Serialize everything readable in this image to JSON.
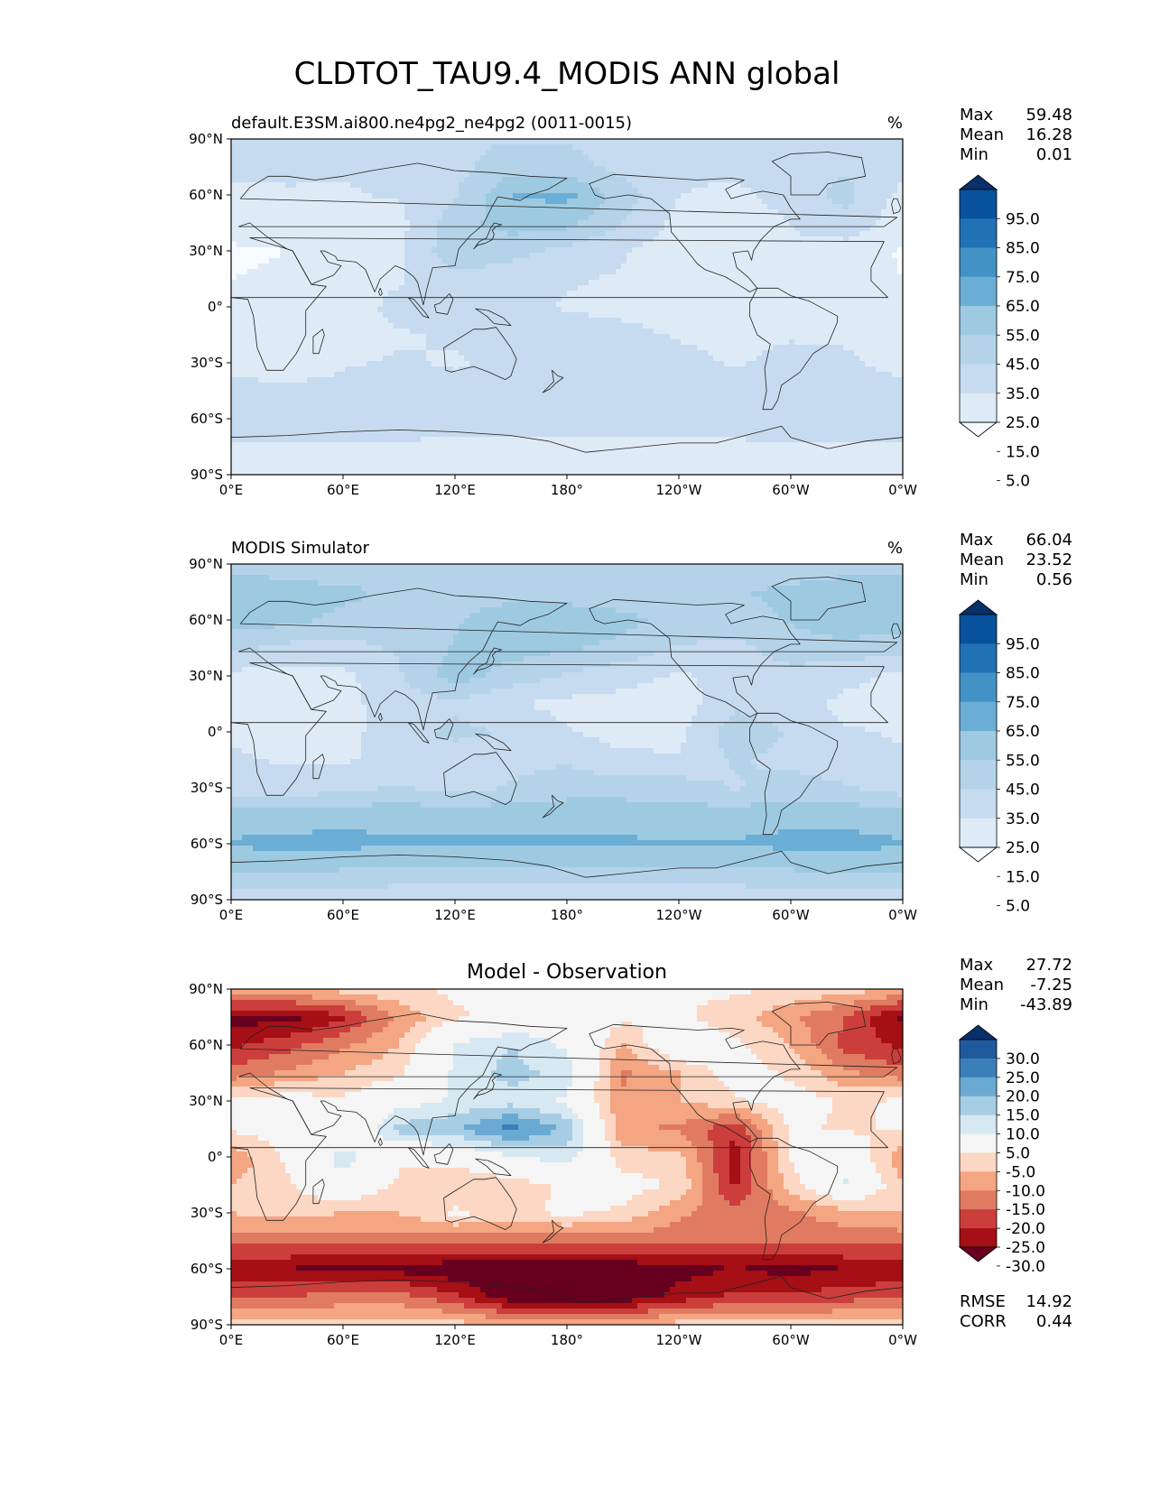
{
  "page_title": "CLDTOT_TAU9.4_MODIS ANN global",
  "lon_ticks": [
    "0°E",
    "60°E",
    "120°E",
    "180°",
    "120°W",
    "60°W",
    "0°W"
  ],
  "lat_ticks": [
    "90°N",
    "60°N",
    "30°N",
    "0°",
    "30°S",
    "60°S",
    "90°S"
  ],
  "stat_labels": {
    "max": "Max",
    "mean": "Mean",
    "min": "Min",
    "rmse": "RMSE",
    "corr": "CORR"
  },
  "colors": {
    "blues": [
      "#f7fbff",
      "#deebf7",
      "#c6dbef",
      "#b4d3e9",
      "#9ecae1",
      "#6baed6",
      "#4292c6",
      "#2171b5",
      "#08519c",
      "#08306b"
    ],
    "diverging": [
      "#67001f",
      "#a50f15",
      "#cb3e3b",
      "#e07b62",
      "#f4a582",
      "#fbd7c4",
      "#f5f5f5",
      "#d6e8f2",
      "#a7cde4",
      "#6aaad2",
      "#3b7fb9",
      "#1e5a9c",
      "#08306b"
    ],
    "coast": "#222222"
  },
  "panels": [
    {
      "left_title": "default.E3SM.ai800.ne4pg2_ne4pg2 (0011-0015)",
      "center_title": "",
      "units": "%",
      "stats": {
        "max": "59.48",
        "mean": "16.28",
        "min": "0.01"
      },
      "colorbar_ticks": [
        "95.0",
        "85.0",
        "75.0",
        "65.0",
        "55.0",
        "45.0",
        "35.0",
        "25.0",
        "15.0",
        "5.0"
      ]
    },
    {
      "left_title": "MODIS Simulator",
      "center_title": "",
      "units": "%",
      "stats": {
        "max": "66.04",
        "mean": "23.52",
        "min": "0.56"
      },
      "colorbar_ticks": [
        "95.0",
        "85.0",
        "75.0",
        "65.0",
        "55.0",
        "45.0",
        "35.0",
        "25.0",
        "15.0",
        "5.0"
      ]
    },
    {
      "left_title": "",
      "center_title": "Model - Observation",
      "units": "",
      "stats": {
        "max": "27.72",
        "mean": "-7.25",
        "min": "-43.89",
        "rmse": "14.92",
        "corr": "0.44"
      },
      "colorbar_ticks": [
        "30.0",
        "25.0",
        "20.0",
        "15.0",
        "10.0",
        "5.0",
        "-5.0",
        "-10.0",
        "-15.0",
        "-20.0",
        "-25.0",
        "-30.0"
      ]
    }
  ],
  "chart_data": [
    {
      "type": "heatmap",
      "title": "default.E3SM.ai800.ne4pg2_ne4pg2 (0011-0015)",
      "units": "%",
      "xlim": [
        0,
        360
      ],
      "ylim": [
        -90,
        90
      ],
      "levels": [
        0,
        5,
        15,
        25,
        35,
        45,
        55,
        65,
        75,
        85,
        95,
        100
      ],
      "stats": {
        "max": 59.48,
        "mean": 16.28,
        "min": 0.01
      },
      "lons": [
        0,
        30,
        60,
        90,
        120,
        150,
        180,
        210,
        240,
        270,
        300,
        330,
        360
      ],
      "lats": [
        90,
        75,
        60,
        45,
        30,
        15,
        0,
        -15,
        -30,
        -45,
        -60,
        -75,
        -90
      ],
      "values": [
        [
          22,
          22,
          22,
          22,
          24,
          24,
          24,
          24,
          24,
          24,
          22,
          22,
          22
        ],
        [
          18,
          17,
          16,
          18,
          22,
          30,
          28,
          22,
          18,
          18,
          22,
          24,
          18
        ],
        [
          12,
          14,
          14,
          16,
          24,
          45,
          48,
          30,
          15,
          12,
          20,
          28,
          12
        ],
        [
          8,
          8,
          10,
          12,
          30,
          40,
          38,
          25,
          12,
          8,
          15,
          22,
          8
        ],
        [
          4,
          5,
          6,
          14,
          32,
          28,
          22,
          16,
          10,
          10,
          14,
          10,
          4
        ],
        [
          5,
          6,
          8,
          14,
          22,
          20,
          16,
          14,
          8,
          12,
          14,
          8,
          5
        ],
        [
          10,
          10,
          10,
          18,
          22,
          18,
          14,
          12,
          10,
          12,
          15,
          12,
          10
        ],
        [
          12,
          10,
          10,
          14,
          16,
          18,
          20,
          18,
          14,
          12,
          14,
          14,
          12
        ],
        [
          12,
          8,
          14,
          16,
          14,
          18,
          20,
          20,
          18,
          14,
          18,
          16,
          12
        ],
        [
          18,
          18,
          18,
          18,
          18,
          20,
          20,
          20,
          20,
          18,
          20,
          20,
          18
        ],
        [
          22,
          22,
          22,
          20,
          20,
          20,
          20,
          20,
          20,
          22,
          24,
          24,
          22
        ],
        [
          14,
          14,
          14,
          14,
          12,
          12,
          12,
          12,
          12,
          12,
          14,
          14,
          14
        ],
        [
          5,
          5,
          5,
          5,
          5,
          5,
          5,
          5,
          5,
          5,
          5,
          5,
          5
        ]
      ]
    },
    {
      "type": "heatmap",
      "title": "MODIS Simulator",
      "units": "%",
      "xlim": [
        0,
        360
      ],
      "ylim": [
        -90,
        90
      ],
      "levels": [
        0,
        5,
        15,
        25,
        35,
        45,
        55,
        65,
        75,
        85,
        95,
        100
      ],
      "stats": {
        "max": 66.04,
        "mean": 23.52,
        "min": 0.56
      },
      "lons": [
        0,
        30,
        60,
        90,
        120,
        150,
        180,
        210,
        240,
        270,
        300,
        330,
        360
      ],
      "lats": [
        90,
        75,
        60,
        45,
        30,
        15,
        0,
        -15,
        -30,
        -45,
        -60,
        -75,
        -90
      ],
      "values": [
        [
          30,
          28,
          26,
          26,
          26,
          26,
          26,
          26,
          26,
          26,
          26,
          28,
          30
        ],
        [
          45,
          40,
          38,
          32,
          30,
          30,
          30,
          28,
          30,
          34,
          38,
          44,
          45
        ],
        [
          40,
          38,
          32,
          30,
          34,
          42,
          42,
          38,
          32,
          30,
          36,
          42,
          40
        ],
        [
          28,
          22,
          22,
          26,
          36,
          40,
          36,
          32,
          24,
          22,
          30,
          32,
          28
        ],
        [
          12,
          10,
          12,
          24,
          40,
          30,
          24,
          18,
          14,
          18,
          22,
          18,
          12
        ],
        [
          10,
          10,
          12,
          20,
          22,
          16,
          12,
          12,
          10,
          22,
          20,
          12,
          10
        ],
        [
          14,
          12,
          12,
          20,
          28,
          24,
          16,
          10,
          12,
          32,
          24,
          16,
          14
        ],
        [
          16,
          14,
          14,
          18,
          18,
          22,
          24,
          18,
          16,
          26,
          22,
          18,
          16
        ],
        [
          20,
          18,
          22,
          26,
          20,
          26,
          30,
          30,
          30,
          24,
          30,
          26,
          20
        ],
        [
          40,
          40,
          42,
          42,
          42,
          42,
          42,
          42,
          40,
          40,
          42,
          42,
          40
        ],
        [
          46,
          48,
          48,
          46,
          46,
          46,
          46,
          46,
          46,
          46,
          48,
          48,
          46
        ],
        [
          36,
          36,
          34,
          32,
          32,
          32,
          32,
          32,
          32,
          32,
          34,
          36,
          36
        ],
        [
          18,
          18,
          18,
          18,
          18,
          18,
          18,
          18,
          18,
          18,
          18,
          18,
          18
        ]
      ]
    },
    {
      "type": "heatmap",
      "title": "Model - Observation",
      "units": "",
      "xlim": [
        0,
        360
      ],
      "ylim": [
        -90,
        90
      ],
      "levels": [
        -100,
        -30,
        -25,
        -20,
        -15,
        -10,
        -5,
        5,
        10,
        15,
        20,
        25,
        30,
        100
      ],
      "stats": {
        "max": 27.72,
        "mean": -7.25,
        "min": -43.89,
        "rmse": 14.92,
        "corr": 0.44
      },
      "lons": [
        0,
        30,
        60,
        90,
        120,
        150,
        180,
        210,
        240,
        270,
        300,
        330,
        360
      ],
      "lats": [
        90,
        75,
        60,
        45,
        30,
        15,
        0,
        -15,
        -30,
        -45,
        -60,
        -75,
        -90
      ],
      "values": [
        [
          -10,
          -10,
          -8,
          -6,
          -4,
          -4,
          -4,
          -4,
          -4,
          -4,
          -6,
          -8,
          -10
        ],
        [
          -32,
          -32,
          -26,
          -14,
          -6,
          -2,
          2,
          -4,
          -4,
          -8,
          -14,
          -20,
          -32
        ],
        [
          -26,
          -22,
          -16,
          -10,
          6,
          10,
          4,
          -10,
          2,
          -4,
          -10,
          -22,
          -26
        ],
        [
          -18,
          -14,
          -10,
          -6,
          6,
          12,
          8,
          -16,
          -10,
          -2,
          -6,
          -14,
          -18
        ],
        [
          -4,
          -2,
          -4,
          2,
          6,
          8,
          4,
          -14,
          -10,
          -6,
          -2,
          -6,
          -4
        ],
        [
          -4,
          -2,
          -4,
          12,
          14,
          22,
          14,
          -14,
          -16,
          -24,
          -4,
          -6,
          -4
        ],
        [
          -14,
          -4,
          8,
          -4,
          -2,
          4,
          8,
          -8,
          -8,
          -28,
          -4,
          2,
          -14
        ],
        [
          -10,
          -6,
          2,
          -6,
          -10,
          -8,
          -4,
          -2,
          -6,
          -26,
          -8,
          6,
          -10
        ],
        [
          -10,
          -8,
          -10,
          -10,
          -4,
          -6,
          -4,
          -6,
          -14,
          -18,
          -16,
          -12,
          -10
        ],
        [
          -18,
          -18,
          -18,
          -18,
          -18,
          -18,
          -18,
          -18,
          -18,
          -18,
          -18,
          -18,
          -18
        ],
        [
          -30,
          -30,
          -32,
          -32,
          -34,
          -34,
          -34,
          -34,
          -32,
          -30,
          -32,
          -30,
          -30
        ],
        [
          -20,
          -20,
          -18,
          -18,
          -24,
          -34,
          -34,
          -34,
          -28,
          -24,
          -24,
          -22,
          -20
        ],
        [
          -8,
          -8,
          -8,
          -8,
          -8,
          -10,
          -12,
          -10,
          -8,
          -8,
          -8,
          -8,
          -8
        ]
      ]
    }
  ]
}
